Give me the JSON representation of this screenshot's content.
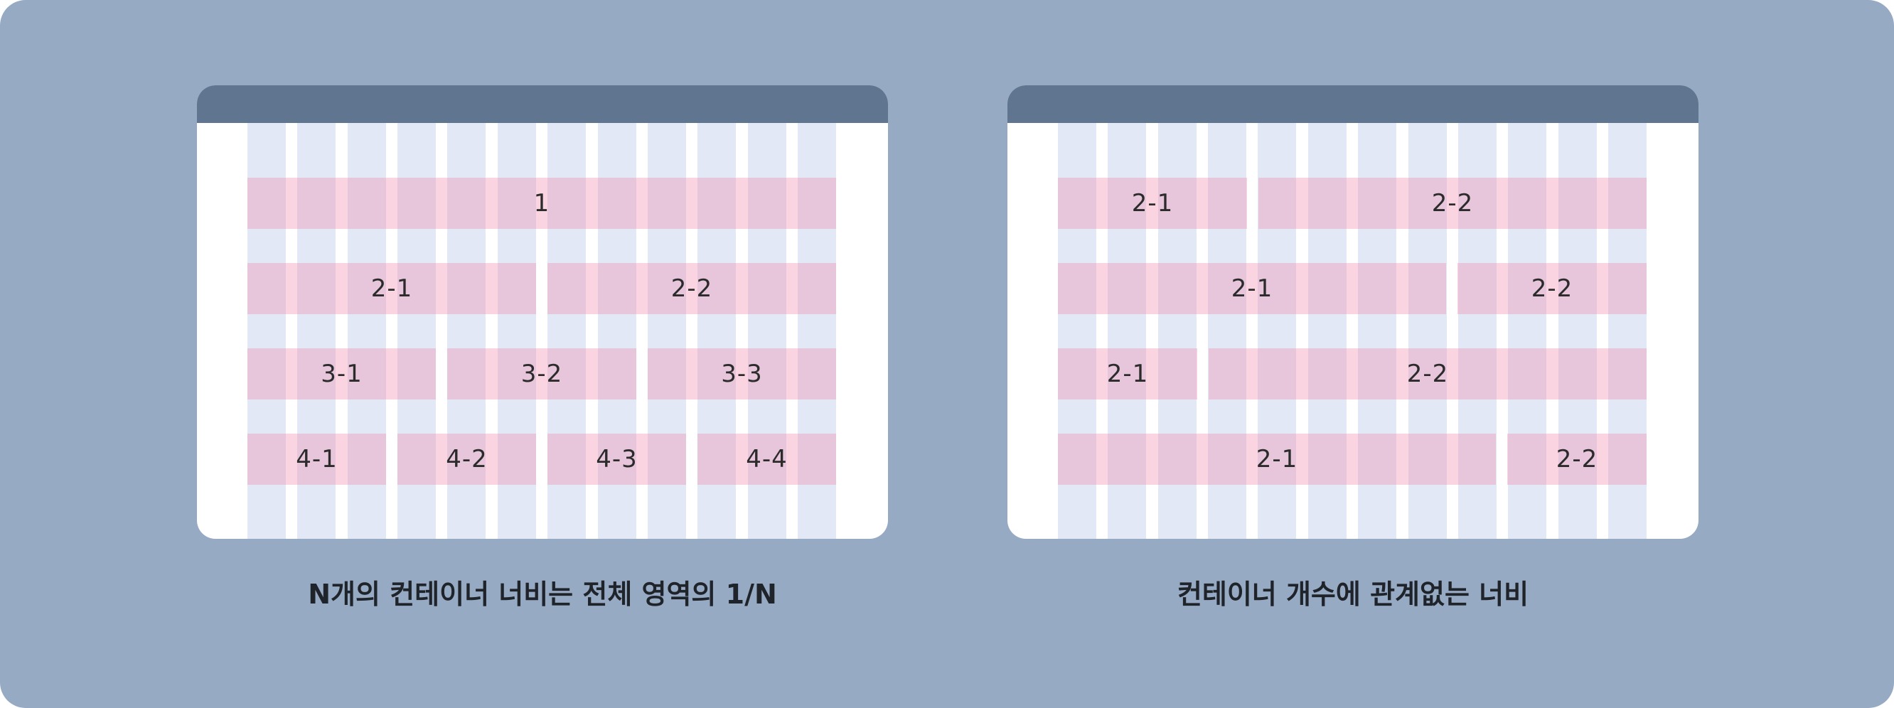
{
  "left_panel": {
    "caption": "N개의 컨테이너 너비는 전체 영역의 1/N",
    "rows": [
      [
        "1"
      ],
      [
        "2-1",
        "2-2"
      ],
      [
        "3-1",
        "3-2",
        "3-3"
      ],
      [
        "4-1",
        "4-2",
        "4-3",
        "4-4"
      ]
    ]
  },
  "right_panel": {
    "caption": "컨테이너 개수에 관계없는 너비",
    "rows": [
      [
        "2-1",
        "2-2"
      ],
      [
        "2-1",
        "2-2"
      ],
      [
        "2-1",
        "2-2"
      ],
      [
        "2-1",
        "2-2"
      ]
    ]
  },
  "colors": {
    "background": "#97aac4",
    "titlebar": "#60758f",
    "grid_column": "#e2e8f6",
    "container_block": "#f288a8"
  }
}
